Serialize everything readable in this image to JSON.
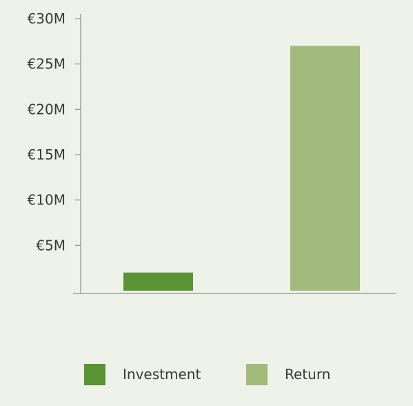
{
  "chart_data": {
    "type": "bar",
    "categories": [
      "Investment",
      "Return"
    ],
    "values": [
      2.0,
      27.0
    ],
    "units": "€M",
    "ylim": [
      0,
      30
    ],
    "yticks": [
      5,
      10,
      15,
      20,
      25,
      30
    ],
    "ytick_labels": [
      "€5M",
      "€10M",
      "€15M",
      "€20M",
      "€25M",
      "€30M"
    ],
    "colors": [
      "#5a9435",
      "#a2bb7c"
    ],
    "legend": {
      "position": "bottom",
      "items": [
        {
          "label": "Investment",
          "color": "#5a9435"
        },
        {
          "label": "Return",
          "color": "#a2bb7c"
        }
      ]
    },
    "grid": false
  }
}
